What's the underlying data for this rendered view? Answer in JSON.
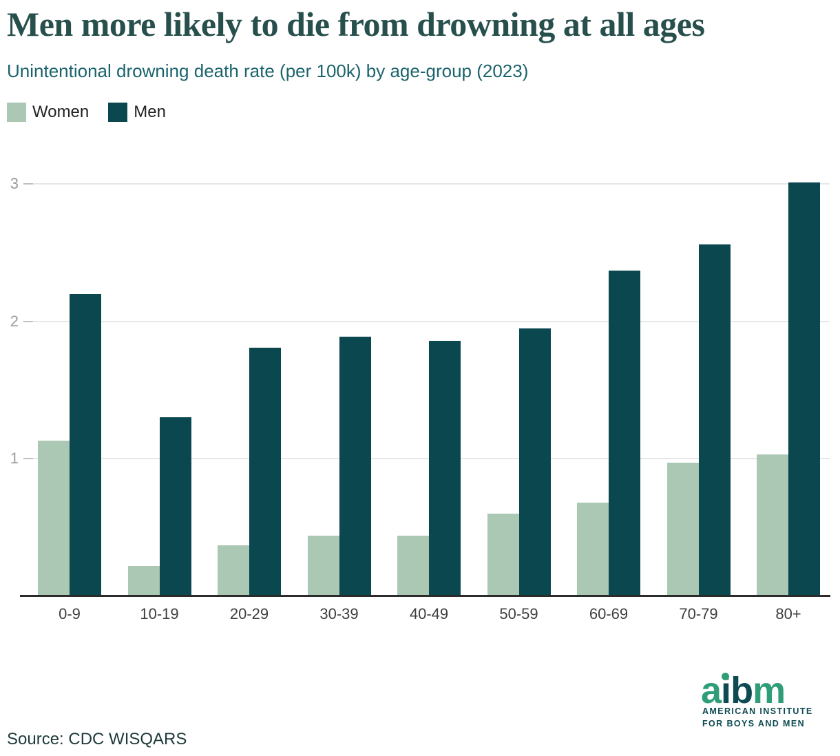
{
  "title": "Men more likely to die from drowning at all ages",
  "subtitle": "Unintentional drowning death rate (per 100k) by age-group (2023)",
  "legend": [
    {
      "label": "Women",
      "color": "#abc8b5"
    },
    {
      "label": "Men",
      "color": "#0a474f"
    }
  ],
  "source": "Source: CDC WISQARS",
  "logo": {
    "word": "aibm",
    "letters": [
      {
        "ch": "a",
        "color": "#2f9e78"
      },
      {
        "ch": "i",
        "color": "#0d4a52",
        "dot": "#2f9e78"
      },
      {
        "ch": "b",
        "color": "#0d4a52"
      },
      {
        "ch": "m",
        "color": "#2f9e78"
      }
    ],
    "line1": "AMERICAN INSTITUTE",
    "line2": "FOR BOYS AND MEN"
  },
  "chart_data": {
    "type": "bar",
    "categories": [
      "0-9",
      "10-19",
      "20-29",
      "30-39",
      "40-49",
      "50-59",
      "60-69",
      "70-79",
      "80+"
    ],
    "series": [
      {
        "name": "Women",
        "color": "#abc8b5",
        "values": [
          1.13,
          0.22,
          0.37,
          0.44,
          0.44,
          0.6,
          0.68,
          0.97,
          1.03
        ]
      },
      {
        "name": "Men",
        "color": "#0a474f",
        "values": [
          2.2,
          1.3,
          1.81,
          1.89,
          1.86,
          1.95,
          2.37,
          2.56,
          3.01
        ]
      }
    ],
    "title": "Men more likely to die from drowning at all ages",
    "xlabel": "",
    "ylabel": "Unintentional drowning death rate (per 100k)",
    "yticks": [
      1,
      2,
      3
    ],
    "ylim": [
      0,
      3.05
    ],
    "grid": true,
    "legend_position": "top-left"
  }
}
